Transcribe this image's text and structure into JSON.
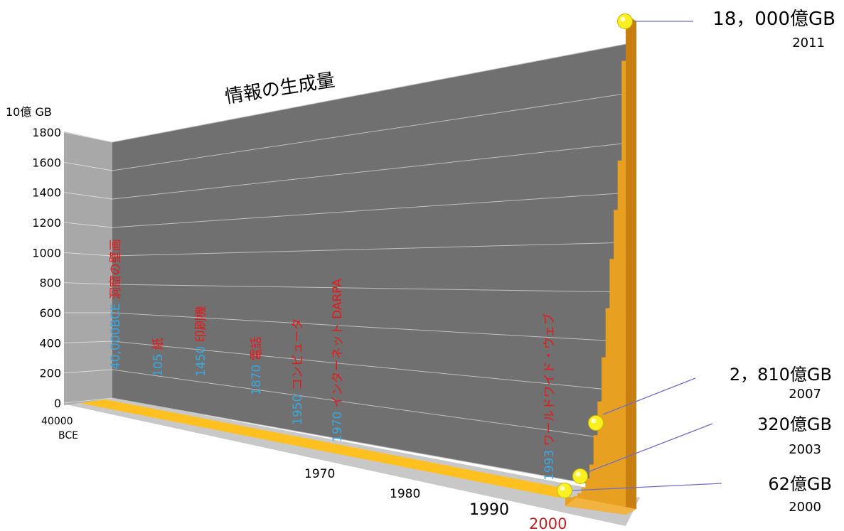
{
  "chart_data": {
    "type": "area",
    "title": "情報の生成量",
    "ylabel": "10億 GB",
    "ylim": [
      0,
      1800
    ],
    "yticks": [
      "0",
      "200",
      "400",
      "600",
      "800",
      "1000",
      "1200",
      "1400",
      "1600",
      "1800"
    ],
    "xticks": [
      "40000\nBCE",
      "1970",
      "1980",
      "1990",
      "2000"
    ],
    "grid": true,
    "series_color": "#E8A020",
    "events": [
      {
        "year": "40,000BCE",
        "label": "洞窟の壁画"
      },
      {
        "year": "105",
        "label": "紙"
      },
      {
        "year": "1450",
        "label": "印刷機"
      },
      {
        "year": "1870",
        "label": "電話"
      },
      {
        "year": "1950",
        "label": "コンピュータ"
      },
      {
        "year": "1970",
        "label": "インターネット DARPA"
      },
      {
        "year": "1993",
        "label": "ワールドワイド・ウェブ"
      }
    ],
    "callouts": [
      {
        "value": "18，000億GB",
        "year": "2011",
        "y": 1800
      },
      {
        "value": "2，810億GB",
        "year": "2007",
        "y": 281
      },
      {
        "value": "320億GB",
        "year": "2003",
        "y": 32
      },
      {
        "value": "62億GB",
        "year": "2000",
        "y": 6.2
      }
    ]
  }
}
